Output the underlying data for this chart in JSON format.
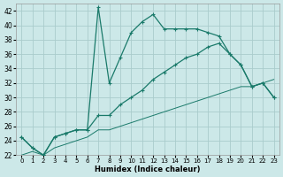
{
  "xlabel": "Humidex (Indice chaleur)",
  "background_color": "#cce8e8",
  "grid_color": "#aacccc",
  "line_color": "#1a7a6a",
  "xlim": [
    -0.5,
    23.5
  ],
  "ylim": [
    22,
    43
  ],
  "yticks": [
    22,
    24,
    26,
    28,
    30,
    32,
    34,
    36,
    38,
    40,
    42
  ],
  "xticks": [
    0,
    1,
    2,
    3,
    4,
    5,
    6,
    7,
    8,
    9,
    10,
    11,
    12,
    13,
    14,
    15,
    16,
    17,
    18,
    19,
    20,
    21,
    22,
    23
  ],
  "series": [
    {
      "y": [
        24.5,
        23.0,
        22.0,
        24.5,
        25.0,
        25.5,
        25.5,
        42.5,
        32.0,
        35.5,
        39.0,
        40.5,
        41.5,
        39.5,
        39.5,
        39.5,
        39.5,
        39.0,
        38.5,
        36.0,
        34.5,
        31.5,
        32.0,
        30.0
      ],
      "marker": "+",
      "linestyle": "-",
      "linewidth": 0.9,
      "markersize": 3.5
    },
    {
      "y": [
        24.5,
        23.0,
        22.0,
        24.5,
        25.0,
        25.5,
        25.5,
        27.5,
        27.5,
        29.0,
        30.0,
        31.0,
        32.5,
        33.5,
        34.5,
        35.5,
        36.0,
        37.0,
        37.5,
        36.0,
        34.5,
        31.5,
        32.0,
        30.0
      ],
      "marker": "+",
      "linestyle": "-",
      "linewidth": 0.9,
      "markersize": 3.5
    },
    {
      "y": [
        22.0,
        22.5,
        22.0,
        23.0,
        23.5,
        24.0,
        24.5,
        25.5,
        25.5,
        26.0,
        26.5,
        27.0,
        27.5,
        28.0,
        28.5,
        29.0,
        29.5,
        30.0,
        30.5,
        31.0,
        31.5,
        31.5,
        32.0,
        32.5
      ],
      "marker": null,
      "linestyle": "-",
      "linewidth": 0.7,
      "markersize": 0
    }
  ]
}
